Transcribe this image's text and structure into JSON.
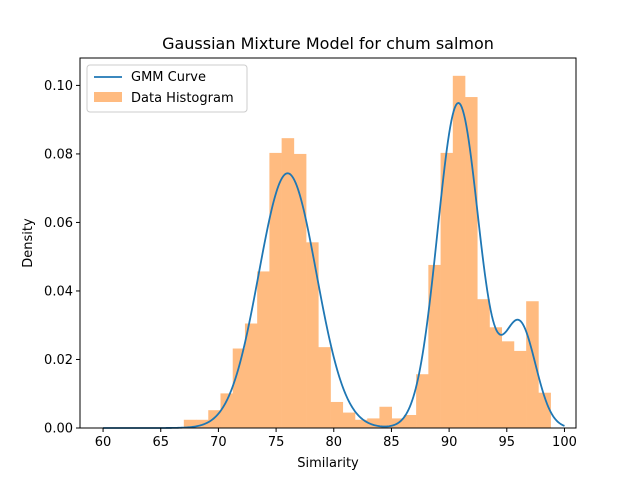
{
  "chart_data": {
    "type": "bar",
    "title": "Gaussian Mixture Model for chum salmon",
    "xlabel": "Similarity",
    "ylabel": "Density",
    "xlim": [
      58,
      101
    ],
    "ylim": [
      0,
      0.108
    ],
    "x_ticks": [
      "60",
      "65",
      "70",
      "75",
      "80",
      "85",
      "90",
      "95",
      "100"
    ],
    "y_ticks": [
      "0.00",
      "0.02",
      "0.04",
      "0.06",
      "0.08",
      "0.10"
    ],
    "grid": false,
    "legend_position": "top-left",
    "series": [
      {
        "name": "GMM Curve",
        "type": "line",
        "color": "#1f77b4",
        "components": [
          {
            "weight": 0.466,
            "mean": 76.0,
            "std": 2.5
          },
          {
            "weight": 0.428,
            "mean": 90.8,
            "std": 1.8
          },
          {
            "weight": 0.106,
            "mean": 96.1,
            "std": 1.4
          }
        ],
        "x_range": [
          60,
          100
        ]
      },
      {
        "name": "Data Histogram",
        "type": "histogram",
        "color": "#ffbb80",
        "bin_edges": [
          67.0,
          68.06,
          69.12,
          70.18,
          71.24,
          72.3,
          73.36,
          74.42,
          75.48,
          76.54,
          77.6,
          78.66,
          79.72,
          80.78,
          81.84,
          82.9,
          83.96,
          85.02,
          86.08,
          87.14,
          88.2,
          89.26,
          90.32,
          91.38,
          92.44,
          93.5,
          94.56,
          95.62,
          96.68,
          97.74,
          98.8
        ],
        "values": [
          0.0024,
          0.0024,
          0.0052,
          0.0101,
          0.0232,
          0.0305,
          0.0457,
          0.0803,
          0.0846,
          0.08,
          0.0542,
          0.0236,
          0.0076,
          0.0045,
          0.0024,
          0.0028,
          0.0062,
          0.0028,
          0.0038,
          0.0157,
          0.0476,
          0.0803,
          0.1028,
          0.0966,
          0.0376,
          0.0294,
          0.0253,
          0.0225,
          0.037,
          0.0103
        ]
      }
    ]
  }
}
